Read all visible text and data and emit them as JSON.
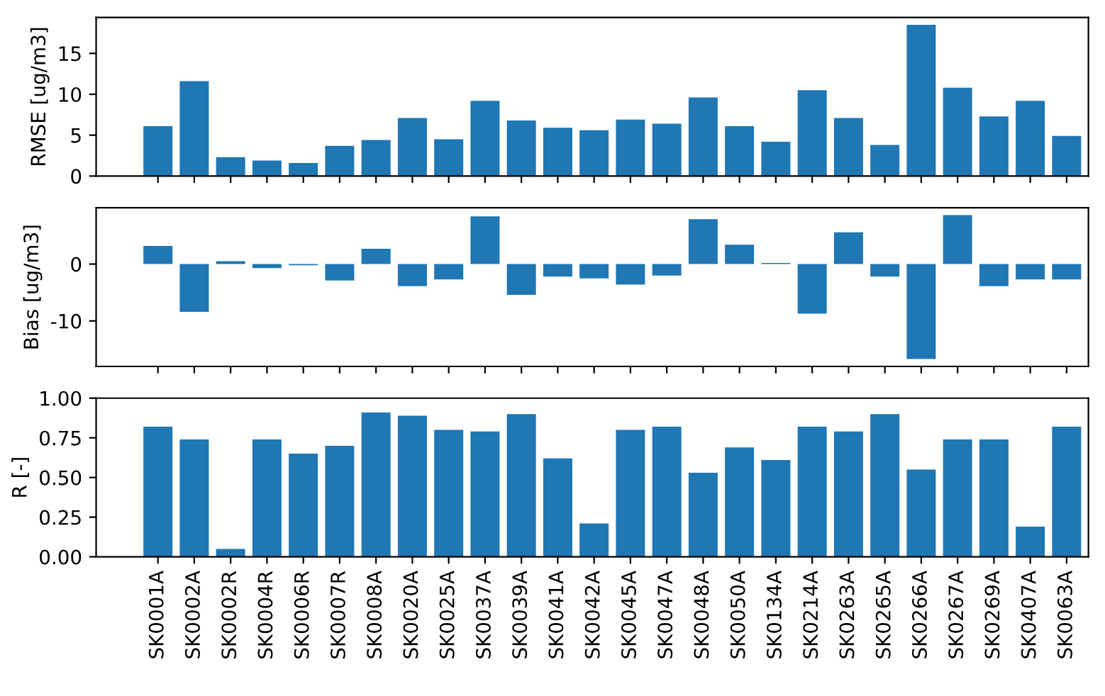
{
  "chart_data": [
    {
      "type": "bar",
      "ylabel": "RMSE [ug/m3]",
      "color": "#1f77b4",
      "ylim": [
        0,
        19.4
      ],
      "yticks": [
        0,
        5,
        10,
        15
      ],
      "categories": [
        null,
        null,
        null,
        null,
        null,
        null,
        null,
        null,
        null,
        null,
        null,
        null,
        null,
        null,
        null,
        null,
        null,
        null,
        null,
        null,
        null,
        null,
        null,
        null,
        null,
        null
      ],
      "values": [
        6.1,
        11.6,
        2.3,
        1.9,
        1.6,
        3.7,
        4.4,
        7.1,
        4.5,
        9.2,
        6.8,
        5.9,
        5.6,
        6.9,
        6.4,
        9.6,
        6.1,
        4.2,
        10.5,
        7.1,
        3.8,
        18.5,
        10.8,
        7.3,
        9.2,
        4.9
      ]
    },
    {
      "type": "bar",
      "ylabel": "Bias [ug/m3]",
      "color": "#1f77b4",
      "ylim": [
        -18,
        9.9
      ],
      "yticks": [
        -10,
        0
      ],
      "categories": [
        null,
        null,
        null,
        null,
        null,
        null,
        null,
        null,
        null,
        null,
        null,
        null,
        null,
        null,
        null,
        null,
        null,
        null,
        null,
        null,
        null,
        null,
        null,
        null,
        null,
        null
      ],
      "values": [
        3.2,
        -8.4,
        0.5,
        -0.7,
        -0.2,
        -2.9,
        2.7,
        -3.9,
        -2.7,
        8.4,
        -5.4,
        -2.2,
        -2.5,
        -3.6,
        -2.0,
        7.9,
        3.4,
        0.2,
        -8.7,
        5.6,
        -2.2,
        -16.7,
        8.6,
        -3.9,
        -2.7,
        -2.7
      ]
    },
    {
      "type": "bar",
      "ylabel": "R [-]",
      "color": "#1f77b4",
      "ylim": [
        0,
        1
      ],
      "yticks": [
        {
          "value": 0,
          "label": "0.00"
        },
        {
          "value": 0.25,
          "label": "0.25"
        },
        {
          "value": 0.5,
          "label": "0.50"
        },
        {
          "value": 0.75,
          "label": "0.75"
        },
        {
          "value": 1,
          "label": "1.00"
        }
      ],
      "categories": [
        "SK0001A",
        "SK0002A",
        "SK0002R",
        "SK0004R",
        "SK0006R",
        "SK0007R",
        "SK0008A",
        "SK0020A",
        "SK0025A",
        "SK0037A",
        "SK0039A",
        "SK0041A",
        "SK0042A",
        "SK0045A",
        "SK0047A",
        "SK0048A",
        "SK0050A",
        "SK0134A",
        "SK0214A",
        "SK0263A",
        "SK0265A",
        "SK0266A",
        "SK0267A",
        "SK0269A",
        "SK0407A",
        "SK0063A"
      ],
      "values": [
        0.82,
        0.74,
        0.05,
        0.74,
        0.65,
        0.7,
        0.91,
        0.89,
        0.8,
        0.79,
        0.9,
        0.62,
        0.21,
        0.8,
        0.82,
        0.53,
        0.69,
        0.61,
        0.82,
        0.79,
        0.9,
        0.55,
        0.74,
        0.74,
        0.19,
        0.82
      ]
    }
  ]
}
